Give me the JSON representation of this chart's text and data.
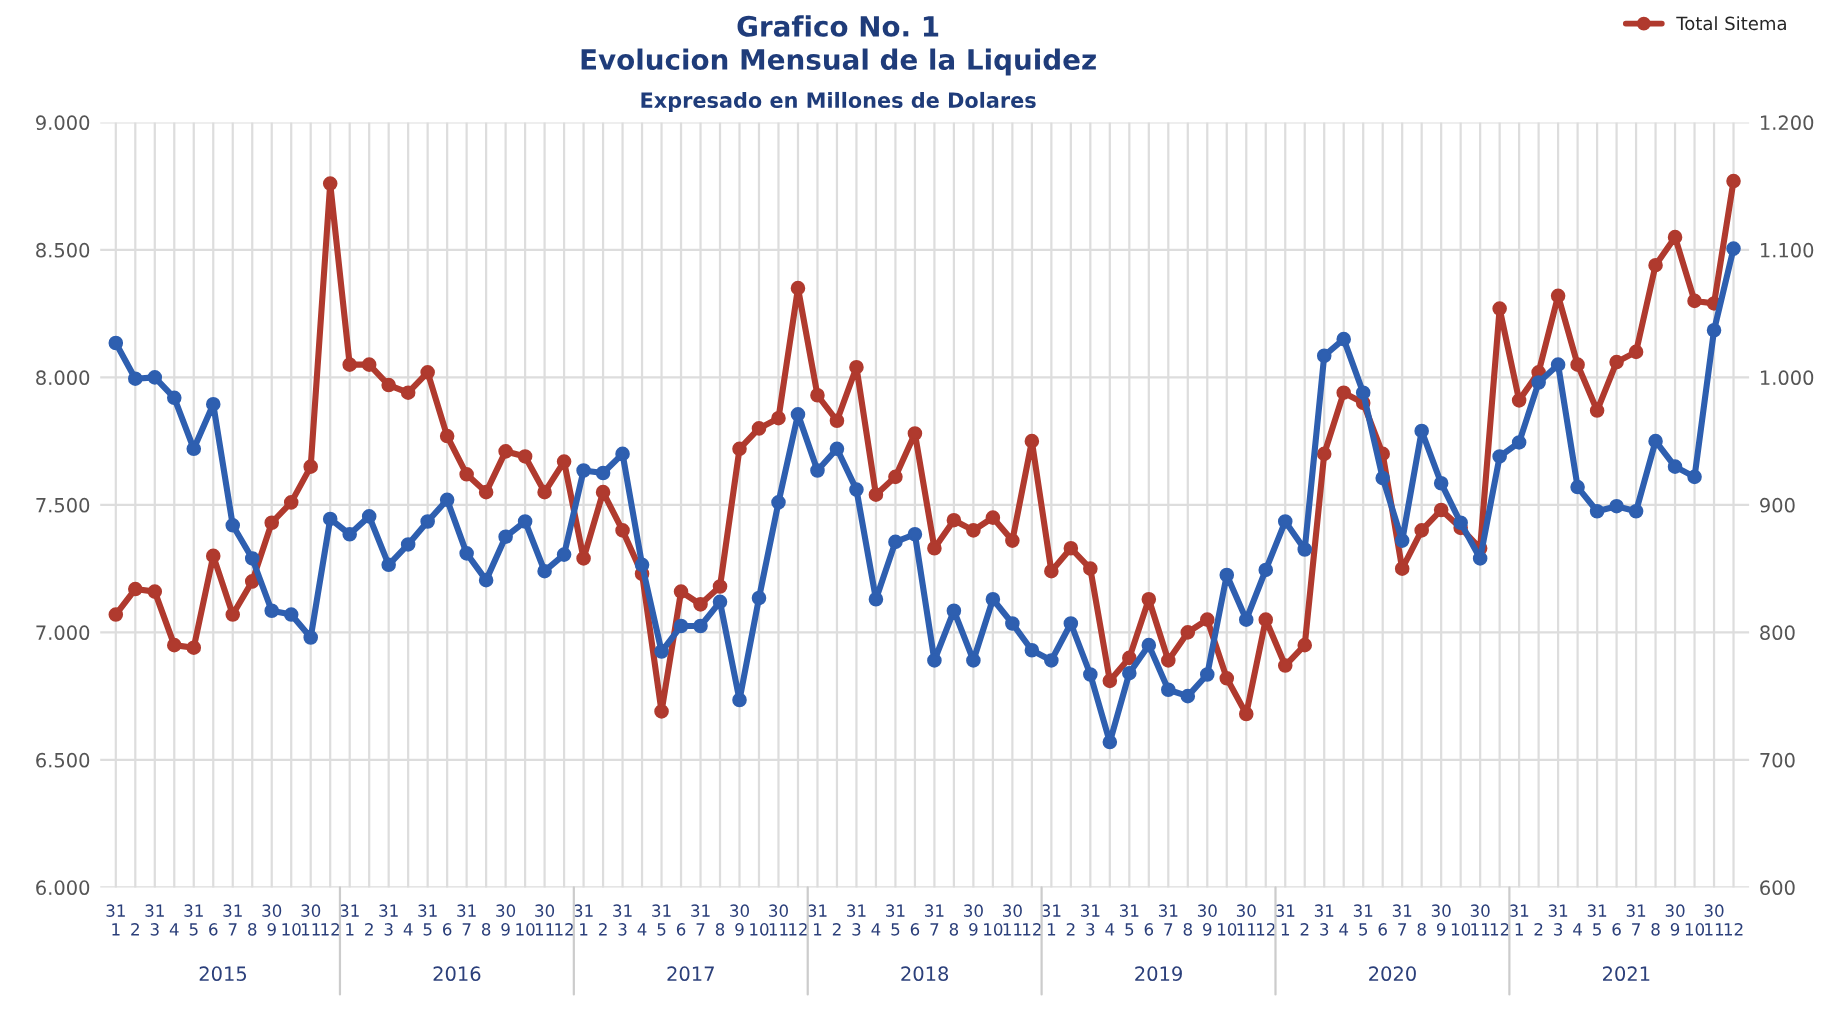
{
  "chart_data": {
    "type": "line",
    "title": "Grafico No. 1\nEvolucion Mensual de la Liquidez",
    "subtitle": "Expresado en Millones de Dolares",
    "categories": [
      "31\n1",
      "2",
      "31\n3",
      "4",
      "31\n5",
      "6",
      "31\n7",
      "8",
      "30\n9",
      "10",
      "30\n11",
      "12",
      "31\n1",
      "2",
      "31\n3",
      "4",
      "31\n5",
      "6",
      "31\n7",
      "8",
      "30\n9",
      "10",
      "30\n11",
      "12",
      "31\n1",
      "2",
      "31\n3",
      "4",
      "31\n5",
      "6",
      "31\n7",
      "8",
      "30\n9",
      "10",
      "30\n11",
      "12",
      "31\n1",
      "2",
      "31\n3",
      "4",
      "31\n5",
      "6",
      "31\n7",
      "8",
      "30\n9",
      "10",
      "30\n11",
      "12",
      "31\n1",
      "2",
      "31\n3",
      "4",
      "31\n5",
      "6",
      "31\n7",
      "8",
      "30\n9",
      "10",
      "30\n11",
      "12",
      "31\n1",
      "2",
      "31\n3",
      "4",
      "31\n5",
      "6",
      "31\n7",
      "8",
      "30\n9",
      "10",
      "30\n11",
      "12",
      "31\n1",
      "2",
      "31\n3",
      "4",
      "31\n5",
      "6",
      "31\n7",
      "8",
      "30\n9",
      "10",
      "30\n11",
      "12"
    ],
    "annotations": [
      "2015",
      "2016",
      "2017",
      "2018",
      "2019",
      "2020",
      "2021"
    ],
    "series": [
      {
        "name": "Total Sitema",
        "color": "#b03a2e",
        "values": [
          7070,
          7170,
          7160,
          6950,
          6940,
          7300,
          7070,
          7200,
          7430,
          7510,
          7650,
          8760,
          8050,
          8050,
          7970,
          7940,
          8020,
          7770,
          7620,
          7550,
          7710,
          7690,
          7550,
          7670,
          7290,
          7550,
          7400,
          7230,
          6690,
          7160,
          7110,
          7180,
          7720,
          7800,
          7840,
          8350,
          7930,
          7830,
          8040,
          7540,
          7610,
          7780,
          7330,
          7440,
          7400,
          7450,
          7360,
          7750,
          7240,
          7330,
          7250,
          6810,
          6900,
          7130,
          6890,
          7000,
          7050,
          6820,
          6680,
          7050,
          6870,
          6950,
          7700,
          7940,
          7900,
          7700,
          7250,
          7400,
          7480,
          7410,
          7330,
          8270,
          7910,
          8020,
          8320,
          8050,
          7870,
          8060,
          8100,
          8440,
          8550,
          8300,
          8290,
          8770
        ]
      },
      {
        "color": "#2e5fb0",
        "axis": "y2",
        "values": [
          1027,
          999,
          1000,
          984,
          944,
          979,
          884,
          858,
          817,
          814,
          796,
          889,
          877,
          891,
          853,
          869,
          887,
          904,
          862,
          841,
          875,
          887,
          848,
          861,
          927,
          925,
          940,
          853,
          785,
          805,
          805,
          824,
          747,
          827,
          902,
          971,
          927,
          944,
          912,
          826,
          871,
          877,
          778,
          817,
          778,
          826,
          807,
          786,
          778,
          807,
          767,
          714,
          768,
          790,
          755,
          750,
          767,
          845,
          810,
          849,
          887,
          865,
          1017,
          1030,
          988,
          921,
          872,
          958,
          917,
          886,
          858,
          938,
          949,
          996,
          1010,
          914,
          895,
          899,
          895,
          950,
          930,
          922,
          1037,
          1101
        ]
      }
    ],
    "ylim": [
      6000,
      9000
    ],
    "yticks": [
      {
        "value": 6000,
        "label": "6.000"
      },
      {
        "value": 6500,
        "label": "6.500"
      },
      {
        "value": 7000,
        "label": "7.000"
      },
      {
        "value": 7500,
        "label": "7.500"
      },
      {
        "value": 8000,
        "label": "8.000"
      },
      {
        "value": 8500,
        "label": "8.500"
      },
      {
        "value": 9000,
        "label": "9.000"
      }
    ],
    "y2lim": [
      600,
      1200
    ],
    "y2ticks": [
      600,
      700,
      800,
      900,
      {
        "value": 1000,
        "label": "1.000"
      },
      {
        "value": 1100,
        "label": "1.100"
      },
      {
        "value": 1200,
        "label": "1.200"
      }
    ],
    "grid": true,
    "legend": "top right",
    "marker": "circle",
    "line_style": "solid"
  }
}
